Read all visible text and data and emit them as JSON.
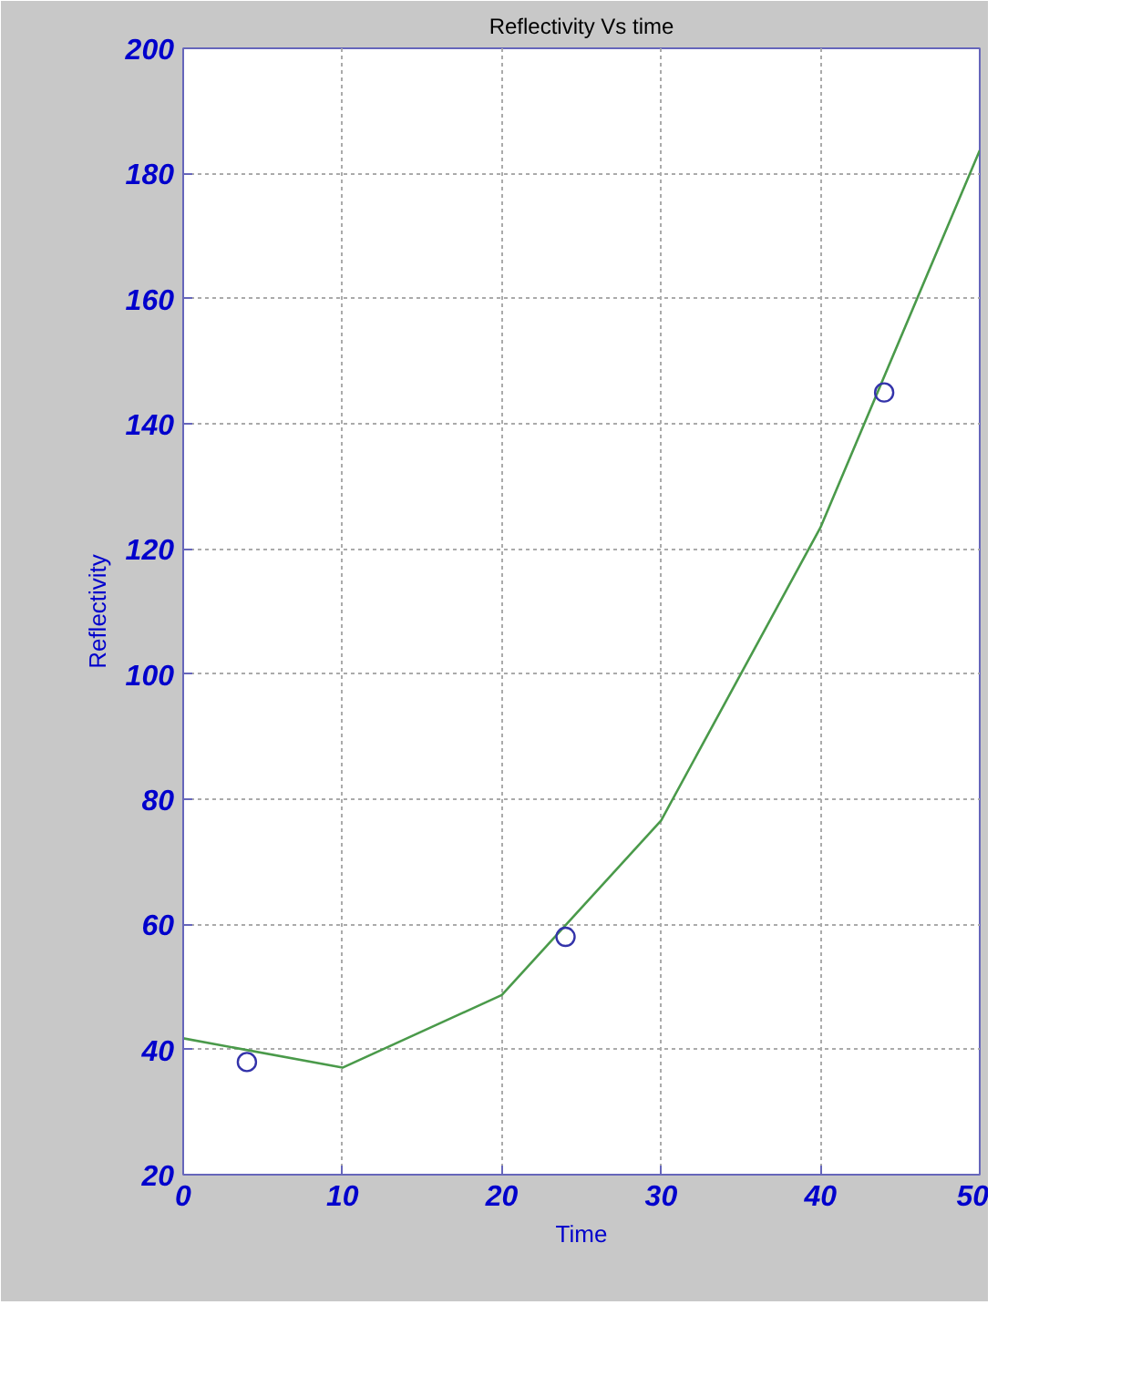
{
  "chart_data": {
    "type": "line",
    "title": "Reflectivity Vs time",
    "xlabel": "Time",
    "ylabel": "Reflectivity",
    "series": [
      {
        "color": "#4a9a4a",
        "x": [
          0,
          10,
          20,
          30,
          40,
          50
        ],
        "values": [
          41.8,
          37.1,
          48.7,
          76.6,
          123.4,
          183.7
        ],
        "line_style": "solid"
      },
      {
        "type": "scatter",
        "color": "#3333aa",
        "x": [
          4,
          24,
          44
        ],
        "values": [
          38,
          58,
          145
        ],
        "marker": "circle"
      }
    ],
    "xlim": [
      0,
      50
    ],
    "xticks": [
      0,
      10,
      20,
      30,
      40,
      50
    ],
    "ylim": [
      20,
      200
    ],
    "yticks": [
      20,
      40,
      60,
      80,
      100,
      120,
      140,
      160,
      180,
      200
    ],
    "grid": true
  }
}
